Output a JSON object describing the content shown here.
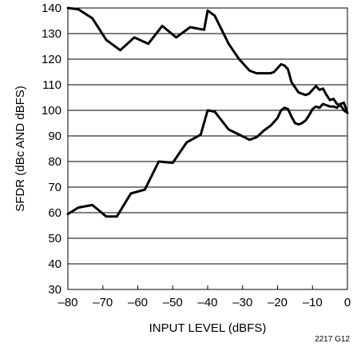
{
  "chart_data": {
    "type": "line",
    "xlabel": "INPUT LEVEL (dBFS)",
    "ylabel": "SFDR (dBc AND dBFS)",
    "xlim": [
      -80,
      0
    ],
    "ylim": [
      30,
      140
    ],
    "xticks": [
      -80,
      -70,
      -60,
      -50,
      -40,
      -30,
      -20,
      -10,
      0
    ],
    "xtick_labels": [
      "–80",
      "–70",
      "–60",
      "–50",
      "–40",
      "–30",
      "–20",
      "–10",
      "0"
    ],
    "yticks": [
      30,
      40,
      50,
      60,
      70,
      80,
      90,
      100,
      110,
      120,
      130,
      140
    ],
    "ytick_labels": [
      "30",
      "40",
      "50",
      "60",
      "70",
      "80",
      "90",
      "100",
      "110",
      "120",
      "130",
      "140"
    ],
    "grid": "horizontal",
    "figure_id": "2217 G12",
    "series": [
      {
        "x": [
          -80,
          -77,
          -73,
          -69,
          -65,
          -61,
          -57,
          -53,
          -49,
          -45,
          -41,
          -40,
          -38,
          -34,
          -31,
          -28,
          -26,
          -24,
          -22,
          -21,
          -19,
          -18,
          -17,
          -16,
          -14,
          -12,
          -11,
          -10,
          -9,
          -8,
          -7,
          -6,
          -5,
          -4,
          -3,
          -2,
          -1,
          0
        ],
        "values": [
          140,
          139.5,
          136,
          127.5,
          123.5,
          128.5,
          126,
          133,
          128.5,
          132.5,
          131.5,
          139,
          137,
          126,
          120,
          115.5,
          114.5,
          114.5,
          114.5,
          115,
          118,
          117.5,
          116,
          111,
          107,
          106,
          106.5,
          108,
          109.5,
          108,
          108.5,
          106,
          104,
          104.5,
          102.5,
          102,
          100,
          99
        ]
      },
      {
        "x": [
          -80,
          -77,
          -73,
          -69,
          -66,
          -62,
          -58,
          -54,
          -50,
          -46,
          -42,
          -40,
          -38,
          -34,
          -31,
          -28,
          -26,
          -24,
          -22,
          -20,
          -19,
          -18,
          -17,
          -16,
          -15,
          -14,
          -13,
          -12,
          -11,
          -10,
          -9,
          -8,
          -7,
          -6,
          -5,
          -4,
          -3,
          -2,
          -1,
          0
        ],
        "values": [
          59.5,
          62,
          63,
          58.5,
          58.5,
          67.5,
          69,
          80,
          79.5,
          87.5,
          90.5,
          100,
          99.5,
          92.5,
          90.5,
          88.5,
          89.5,
          92,
          94,
          97,
          100,
          101,
          100.5,
          97.5,
          95,
          94.5,
          95,
          96,
          98,
          100.5,
          101.5,
          101,
          102.5,
          102,
          101.5,
          101.5,
          101,
          102.5,
          103,
          99
        ]
      }
    ]
  }
}
